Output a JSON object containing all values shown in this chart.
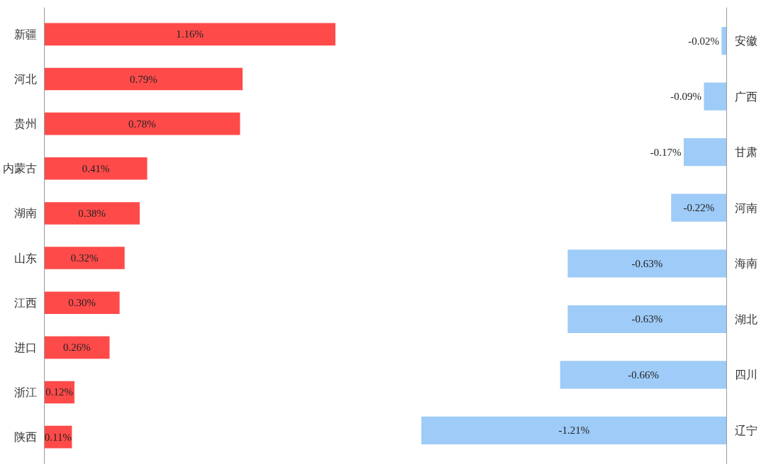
{
  "chart_data": [
    {
      "type": "bar",
      "orientation": "horizontal",
      "categories": [
        "新疆",
        "河北",
        "贵州",
        "内蒙古",
        "湖南",
        "山东",
        "江西",
        "进口",
        "浙江",
        "陕西"
      ],
      "values": [
        1.16,
        0.79,
        0.78,
        0.41,
        0.38,
        0.32,
        0.3,
        0.26,
        0.12,
        0.11
      ],
      "value_labels": [
        "1.16%",
        "0.79%",
        "0.78%",
        "0.41%",
        "0.38%",
        "0.32%",
        "0.30%",
        "0.26%",
        "0.12%",
        "0.11%"
      ],
      "color": "#ff4a4a"
    },
    {
      "type": "bar",
      "orientation": "horizontal",
      "categories": [
        "安徽",
        "广西",
        "甘肃",
        "河南",
        "海南",
        "湖北",
        "四川",
        "辽宁"
      ],
      "values": [
        -0.02,
        -0.09,
        -0.17,
        -0.22,
        -0.63,
        -0.63,
        -0.66,
        -1.21
      ],
      "value_labels": [
        "-0.02%",
        "-0.09%",
        "-0.17%",
        "-0.22%",
        "-0.63%",
        "-0.63%",
        "-0.66%",
        "-1.21%"
      ],
      "color": "#9ecbf7"
    }
  ]
}
